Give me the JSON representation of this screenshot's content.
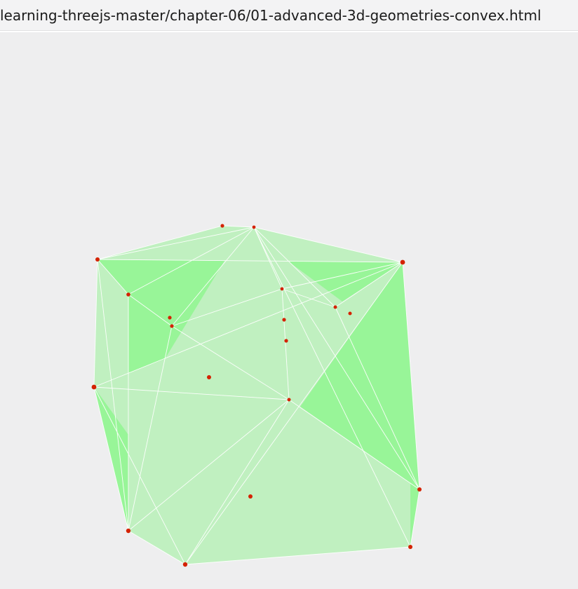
{
  "window": {
    "title": "learning-threejs-master/chapter-06/01-advanced-3d-geometries-convex.html"
  },
  "scene": {
    "description_type": "three.js convex geometry demo",
    "colors": {
      "background": "#eeeeef",
      "hull_light": "#c0f0c0",
      "hull_dark": "#98f598",
      "edge": "#ffffff",
      "point": "#d42200"
    }
  }
}
